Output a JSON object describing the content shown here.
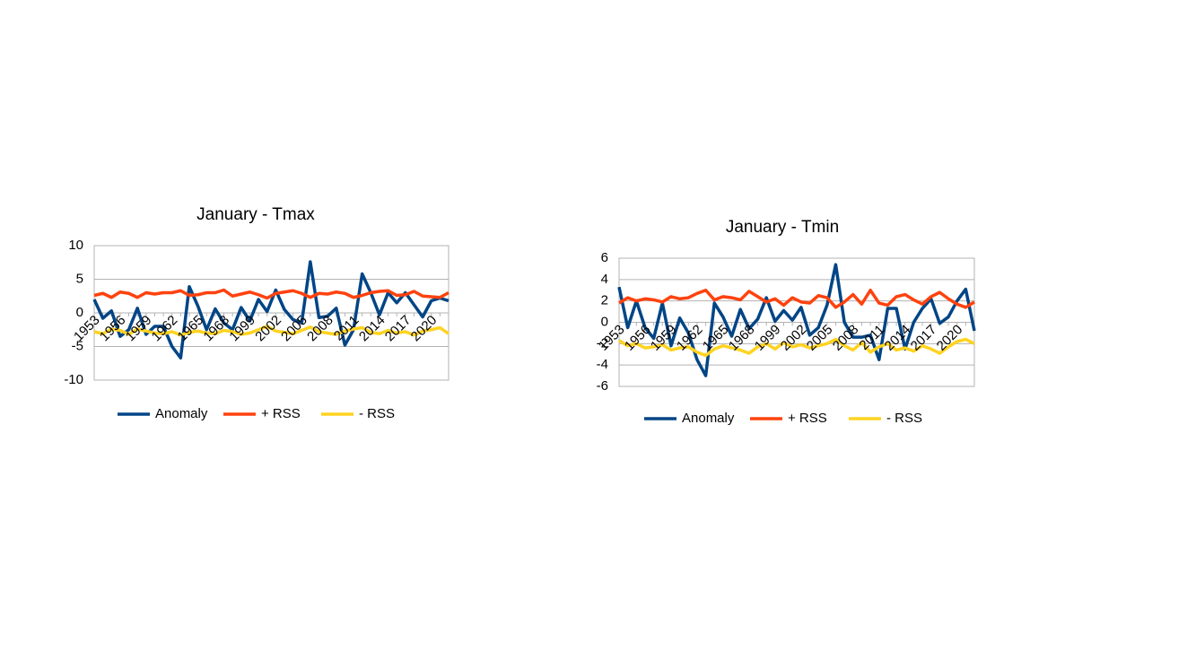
{
  "chart_data": [
    {
      "type": "line",
      "title": "January - Tmax",
      "categories": [
        "1953",
        null,
        null,
        "1956",
        null,
        null,
        "1959",
        null,
        null,
        "1962",
        null,
        null,
        "1965",
        null,
        null,
        "1968",
        null,
        null,
        "1999",
        null,
        null,
        "2002",
        null,
        null,
        "2005",
        null,
        null,
        "2008",
        null,
        null,
        "2011",
        null,
        null,
        "2014",
        null,
        null,
        "2017",
        null,
        null,
        "2020",
        null,
        null
      ],
      "series": [
        {
          "name": "Anomaly",
          "color": "#004586",
          "values": [
            2,
            -0.8,
            0.3,
            -3.5,
            -2.5,
            0.7,
            -3.2,
            -2,
            -2,
            -5,
            -6.7,
            3.9,
            1,
            -2.5,
            0.6,
            -1.5,
            -2.5,
            0.8,
            -1.2,
            2,
            0.2,
            3.4,
            0.5,
            -1,
            -1.5,
            7.6,
            -0.7,
            -0.5,
            0.7,
            -4.8,
            -2.5,
            5.8,
            3,
            -0.3,
            3,
            1.5,
            3,
            1.2,
            -0.6,
            1.8,
            2.2,
            1.8
          ]
        },
        {
          "name": "+ RSS",
          "color": "#ff420e",
          "values": [
            2.6,
            2.9,
            2.3,
            3.1,
            2.9,
            2.3,
            3.0,
            2.8,
            3.0,
            3.0,
            3.3,
            2.6,
            2.7,
            3.0,
            3.0,
            3.4,
            2.5,
            2.8,
            3.1,
            2.7,
            2.2,
            2.9,
            3.1,
            3.3,
            2.9,
            2.3,
            2.9,
            2.8,
            3.1,
            2.9,
            2.3,
            2.6,
            3.0,
            3.2,
            3.3,
            2.6,
            2.7,
            3.2,
            2.5,
            2.4,
            2.3,
            3.0
          ]
        },
        {
          "name": "- RSS",
          "color": "#ffd320",
          "values": [
            -2.8,
            -3.1,
            -2.4,
            -2.6,
            -3.2,
            -2.4,
            -2.7,
            -3.0,
            -3.1,
            -2.8,
            -3.3,
            -2.9,
            -2.7,
            -3.0,
            -3.1,
            -2.6,
            -2.8,
            -3.2,
            -3.0,
            -2.5,
            -2.0,
            -2.7,
            -2.9,
            -3.1,
            -2.6,
            -2.1,
            -2.8,
            -3.0,
            -3.2,
            -2.7,
            -2.4,
            -2.2,
            -2.9,
            -3.1,
            -2.6,
            -3.0,
            -2.8,
            -3.3,
            -2.7,
            -2.5,
            -2.2,
            -3.1
          ]
        }
      ],
      "ylim": [
        -10,
        10
      ],
      "yticks": [
        -10,
        -5,
        0,
        5,
        10
      ],
      "grid": true,
      "legend": "bottom"
    },
    {
      "type": "line",
      "title": "January - Tmin",
      "categories": [
        "1953",
        null,
        null,
        "1956",
        null,
        null,
        "1959",
        null,
        null,
        "1962",
        null,
        null,
        "1965",
        null,
        null,
        "1968",
        null,
        null,
        "1999",
        null,
        null,
        "2002",
        null,
        null,
        "2005",
        null,
        null,
        "2008",
        null,
        null,
        "2011",
        null,
        null,
        "2014",
        null,
        null,
        "2017",
        null,
        null,
        "2020",
        null,
        null
      ],
      "series": [
        {
          "name": "Anomaly",
          "color": "#004586",
          "values": [
            3.3,
            -0.5,
            2,
            -0.5,
            -1.5,
            1.8,
            -2.2,
            0.4,
            -1,
            -3.5,
            -5,
            1.8,
            0.5,
            -1.3,
            1.2,
            -0.6,
            0.3,
            2.3,
            0.1,
            1.1,
            0.2,
            1.4,
            -1.2,
            -0.5,
            1.6,
            5.4,
            0,
            -1.4,
            -1.4,
            -1.2,
            -3.5,
            1.3,
            1.3,
            -2.5,
            0,
            1.3,
            2.2,
            -0.1,
            0.5,
            2,
            3.1,
            -0.8
          ]
        },
        {
          "name": "+ RSS",
          "color": "#ff420e",
          "values": [
            1.8,
            2.3,
            2.0,
            2.2,
            2.1,
            1.9,
            2.4,
            2.2,
            2.3,
            2.7,
            3.0,
            2.1,
            2.4,
            2.3,
            2.1,
            2.9,
            2.4,
            1.9,
            2.2,
            1.6,
            2.3,
            1.9,
            1.8,
            2.5,
            2.3,
            1.4,
            1.9,
            2.6,
            1.7,
            3.0,
            1.8,
            1.6,
            2.4,
            2.6,
            2.1,
            1.7,
            2.4,
            2.8,
            2.2,
            1.7,
            1.4,
            1.9
          ]
        },
        {
          "name": "- RSS",
          "color": "#ffd320",
          "values": [
            -1.7,
            -2.2,
            -2.0,
            -2.4,
            -2.3,
            -2.1,
            -2.6,
            -2.4,
            -2.3,
            -2.8,
            -3.1,
            -2.5,
            -2.2,
            -2.4,
            -2.6,
            -2.9,
            -2.3,
            -2.0,
            -2.5,
            -1.9,
            -2.3,
            -2.1,
            -2.4,
            -2.2,
            -2.0,
            -1.6,
            -2.2,
            -2.6,
            -1.9,
            -2.8,
            -2.3,
            -2.0,
            -2.6,
            -2.4,
            -2.7,
            -2.2,
            -2.5,
            -2.9,
            -2.3,
            -1.8,
            -1.6,
            -2.0
          ]
        }
      ],
      "ylim": [
        -6,
        6
      ],
      "yticks": [
        -6,
        -4,
        -2,
        0,
        2,
        4,
        6
      ],
      "grid": true,
      "legend": "bottom"
    }
  ]
}
